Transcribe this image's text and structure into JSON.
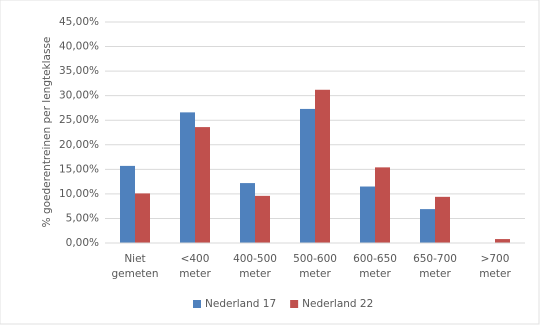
{
  "chart_data": {
    "type": "bar",
    "y_label": "% goederentreinen per lengteklasse",
    "categories": [
      [
        "Niet",
        "gemeten"
      ],
      [
        "<400",
        "meter"
      ],
      [
        "400-500",
        "meter"
      ],
      [
        "500-600",
        "meter"
      ],
      [
        "600-650",
        "meter"
      ],
      [
        "650-700",
        "meter"
      ],
      [
        ">700",
        "meter"
      ]
    ],
    "series": [
      {
        "name": "Nederland 17",
        "color": "#4f81bd",
        "values": [
          15.7,
          26.6,
          12.2,
          27.3,
          11.5,
          6.9,
          0
        ]
      },
      {
        "name": "Nederland 22",
        "color": "#c0504d",
        "values": [
          10.1,
          23.6,
          9.6,
          31.2,
          15.4,
          9.4,
          0.8
        ]
      }
    ],
    "ylim": [
      0,
      45
    ],
    "yticks": [
      {
        "value": 0,
        "label": "0,00%"
      },
      {
        "value": 5,
        "label": "5,00%"
      },
      {
        "value": 10,
        "label": "10,00%"
      },
      {
        "value": 15,
        "label": "15,00%"
      },
      {
        "value": 20,
        "label": "20,00%"
      },
      {
        "value": 25,
        "label": "25,00%"
      },
      {
        "value": 30,
        "label": "30,00%"
      },
      {
        "value": 35,
        "label": "35,00%"
      },
      {
        "value": 40,
        "label": "40,00%"
      },
      {
        "value": 45,
        "label": "45,00%"
      }
    ],
    "grid": true,
    "legend": "bottom"
  }
}
